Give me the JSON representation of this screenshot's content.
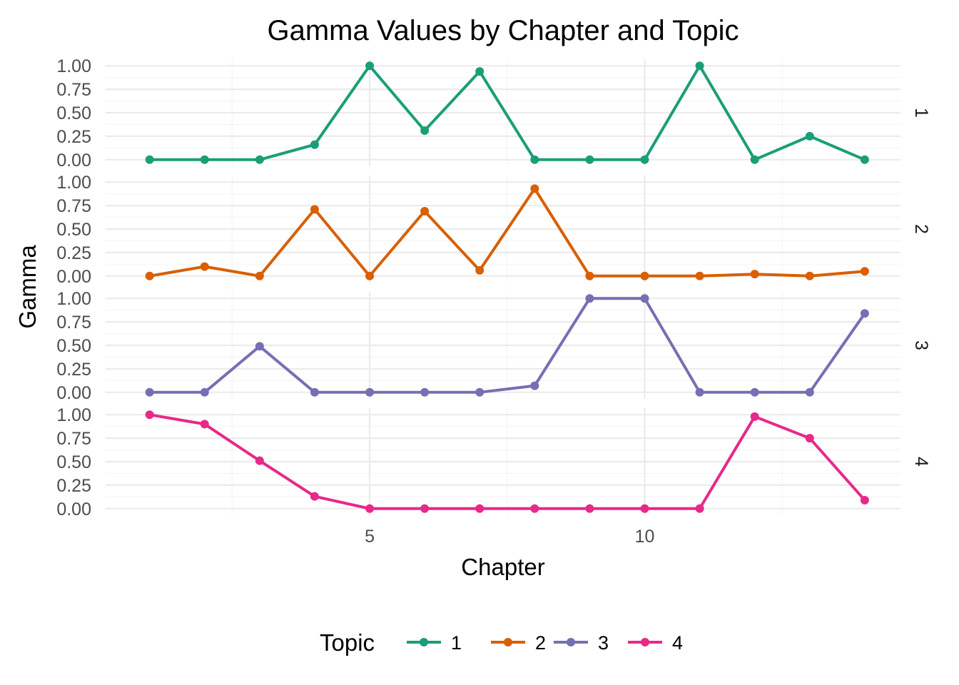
{
  "chart_data": {
    "type": "line",
    "title": "Gamma Values by Chapter and Topic",
    "xlabel": "Chapter",
    "ylabel": "Gamma",
    "x": [
      1,
      2,
      3,
      4,
      5,
      6,
      7,
      8,
      9,
      10,
      11,
      12,
      13,
      14
    ],
    "xlim": [
      0.2,
      14.65
    ],
    "x_ticks": [
      5,
      10
    ],
    "ylim": [
      -0.07,
      1.07
    ],
    "y_ticks": [
      "0.00",
      "0.25",
      "0.50",
      "0.75",
      "1.00"
    ],
    "grid": true,
    "facet": "rows by Topic",
    "legend": {
      "title": "Topic",
      "position": "bottom"
    },
    "series": [
      {
        "name": "1",
        "color": "#1B9E77",
        "values": [
          0.0,
          0.0,
          0.0,
          0.16,
          1.0,
          0.31,
          0.94,
          0.0,
          0.0,
          0.0,
          1.0,
          0.0,
          0.25,
          0.0
        ]
      },
      {
        "name": "2",
        "color": "#D95F02",
        "values": [
          0.0,
          0.1,
          0.0,
          0.71,
          0.0,
          0.69,
          0.06,
          0.93,
          0.0,
          0.0,
          0.0,
          0.02,
          0.0,
          0.05
        ]
      },
      {
        "name": "3",
        "color": "#7570B3",
        "values": [
          0.0,
          0.0,
          0.49,
          0.0,
          0.0,
          0.0,
          0.0,
          0.07,
          1.0,
          1.0,
          0.0,
          0.0,
          0.0,
          0.84
        ]
      },
      {
        "name": "4",
        "color": "#E7298A",
        "values": [
          1.0,
          0.9,
          0.51,
          0.13,
          0.0,
          0.0,
          0.0,
          0.0,
          0.0,
          0.0,
          0.0,
          0.98,
          0.75,
          0.09
        ]
      }
    ]
  }
}
